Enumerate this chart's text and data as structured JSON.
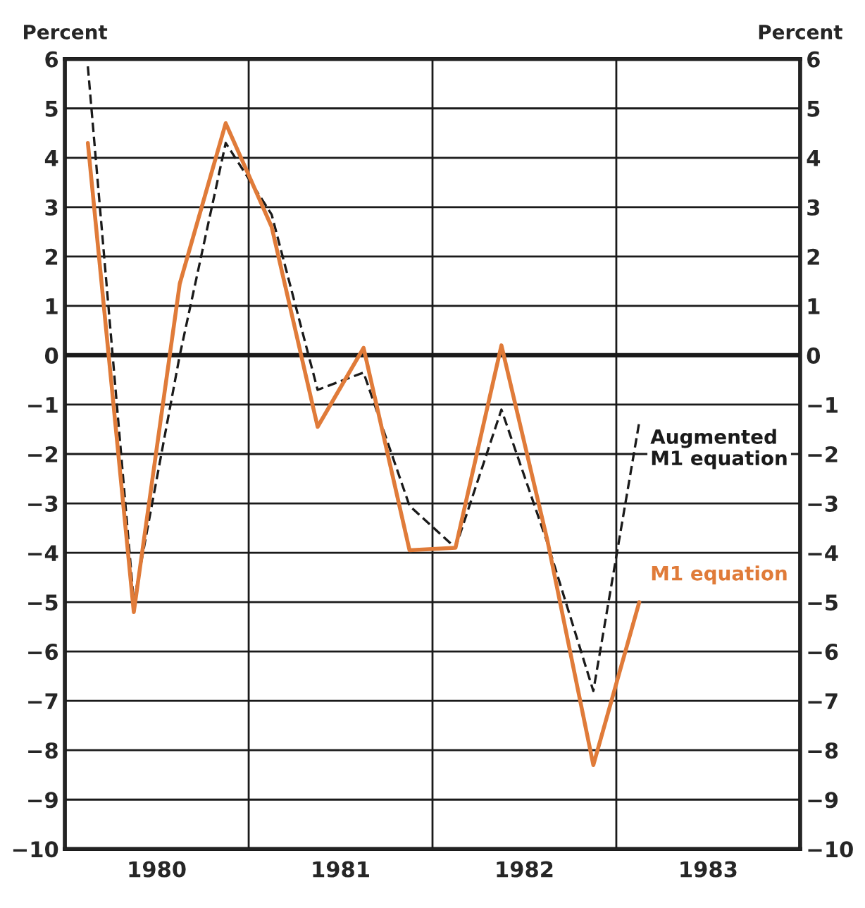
{
  "chart_data": {
    "type": "line",
    "ylabel": "Percent",
    "y2label": "Percent",
    "x": [
      1980.125,
      1980.375,
      1980.625,
      1980.875,
      1981.125,
      1981.375,
      1981.625,
      1981.875,
      1982.125,
      1982.375,
      1982.625,
      1982.875,
      1983.125
    ],
    "series": [
      {
        "name": "Augmented M1 equation",
        "color": "#1a1a1a",
        "line_style": "dashed",
        "values": [
          5.85,
          -5.0,
          0.0,
          4.3,
          2.85,
          -0.7,
          -0.35,
          -3.05,
          -3.9,
          -1.1,
          -3.8,
          -6.8,
          -1.35
        ]
      },
      {
        "name": "M1 equation",
        "color": "#e07b39",
        "line_style": "solid",
        "values": [
          4.3,
          -5.2,
          1.45,
          4.7,
          2.6,
          -1.45,
          0.15,
          -3.95,
          -3.9,
          0.2,
          -3.75,
          -8.3,
          -5.0
        ]
      }
    ],
    "xlim": [
      1980,
      1984
    ],
    "xticks": [
      {
        "value": 1980.5,
        "label": "1980"
      },
      {
        "value": 1981,
        "label": null
      },
      {
        "value": 1981.5,
        "label": "1981"
      },
      {
        "value": 1982,
        "label": null
      },
      {
        "value": 1982.5,
        "label": "1982"
      },
      {
        "value": 1983,
        "label": null
      },
      {
        "value": 1983.5,
        "label": "1983"
      }
    ],
    "ylim": [
      -10,
      6
    ],
    "yticks": [
      -10,
      -9,
      -8,
      -7,
      -6,
      -5,
      -4,
      -3,
      -2,
      -1,
      0,
      1,
      2,
      3,
      4,
      5,
      6
    ],
    "y2lim": [
      -10,
      6
    ],
    "y2ticks": [
      -10,
      -9,
      -8,
      -7,
      -6,
      -5,
      -4,
      -3,
      -2,
      -1,
      0,
      1,
      2,
      3,
      4,
      5,
      6
    ],
    "ref_lines": [
      {
        "axis": "y",
        "value": 0,
        "color": "#1a1a1a"
      }
    ],
    "grid": true,
    "legend": false,
    "marker": "none"
  }
}
